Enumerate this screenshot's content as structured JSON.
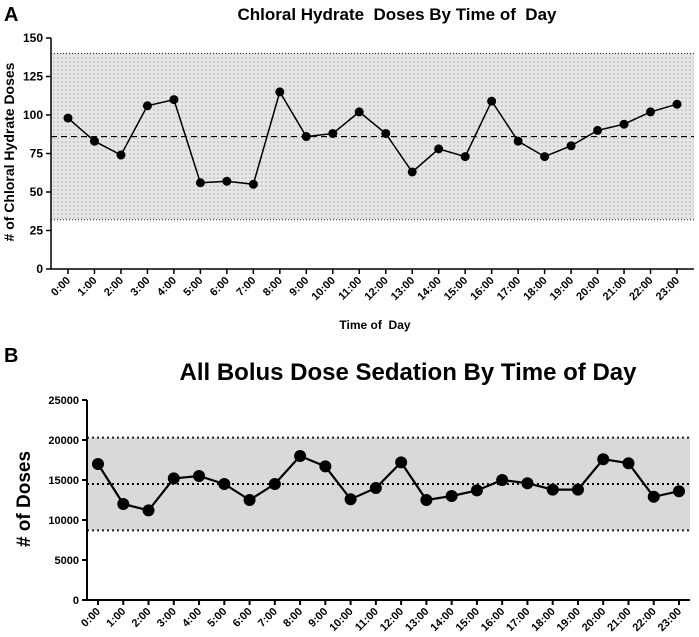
{
  "chart_data": [
    {
      "panel": "A",
      "type": "line",
      "title": "Chloral Hydrate  Doses By Time of  Day",
      "xlabel": "Time of  Day",
      "ylabel": "# of Chloral Hydrate Doses",
      "ylim": [
        0,
        150
      ],
      "yticks": [
        0,
        25,
        50,
        75,
        100,
        125,
        150
      ],
      "categories": [
        "0:00",
        "1:00",
        "2:00",
        "3:00",
        "4:00",
        "5:00",
        "6:00",
        "7:00",
        "8:00",
        "9:00",
        "10:00",
        "11:00",
        "12:00",
        "13:00",
        "14:00",
        "15:00",
        "16:00",
        "17:00",
        "18:00",
        "19:00",
        "20:00",
        "21:00",
        "22:00",
        "23:00"
      ],
      "values": [
        98,
        83,
        74,
        106,
        110,
        56,
        57,
        55,
        115,
        86,
        88,
        102,
        88,
        63,
        78,
        73,
        109,
        83,
        73,
        80,
        90,
        94,
        102,
        107
      ],
      "mean": 86,
      "band": [
        32,
        140
      ],
      "band_style": "dotted",
      "grid": false
    },
    {
      "panel": "B",
      "type": "line",
      "title": "All Bolus Dose Sedation By Time of Day",
      "xlabel": "",
      "ylabel": "# of Doses",
      "ylim": [
        0,
        25000
      ],
      "yticks": [
        0,
        5000,
        10000,
        15000,
        20000,
        25000
      ],
      "categories": [
        "0:00",
        "1:00",
        "2:00",
        "3:00",
        "4:00",
        "5:00",
        "6:00",
        "7:00",
        "8:00",
        "9:00",
        "10:00",
        "11:00",
        "12:00",
        "13:00",
        "14:00",
        "15:00",
        "16:00",
        "17:00",
        "18:00",
        "19:00",
        "20:00",
        "21:00",
        "22:00",
        "23:00"
      ],
      "values": [
        17000,
        12000,
        11200,
        15200,
        15500,
        14500,
        12500,
        14500,
        18000,
        16700,
        12600,
        14000,
        17200,
        12500,
        13000,
        13700,
        15000,
        14600,
        13800,
        13800,
        17600,
        17100,
        12900,
        13600
      ],
      "mean": 14500,
      "band": [
        8700,
        20300
      ],
      "band_style": "solid",
      "grid": false
    }
  ]
}
